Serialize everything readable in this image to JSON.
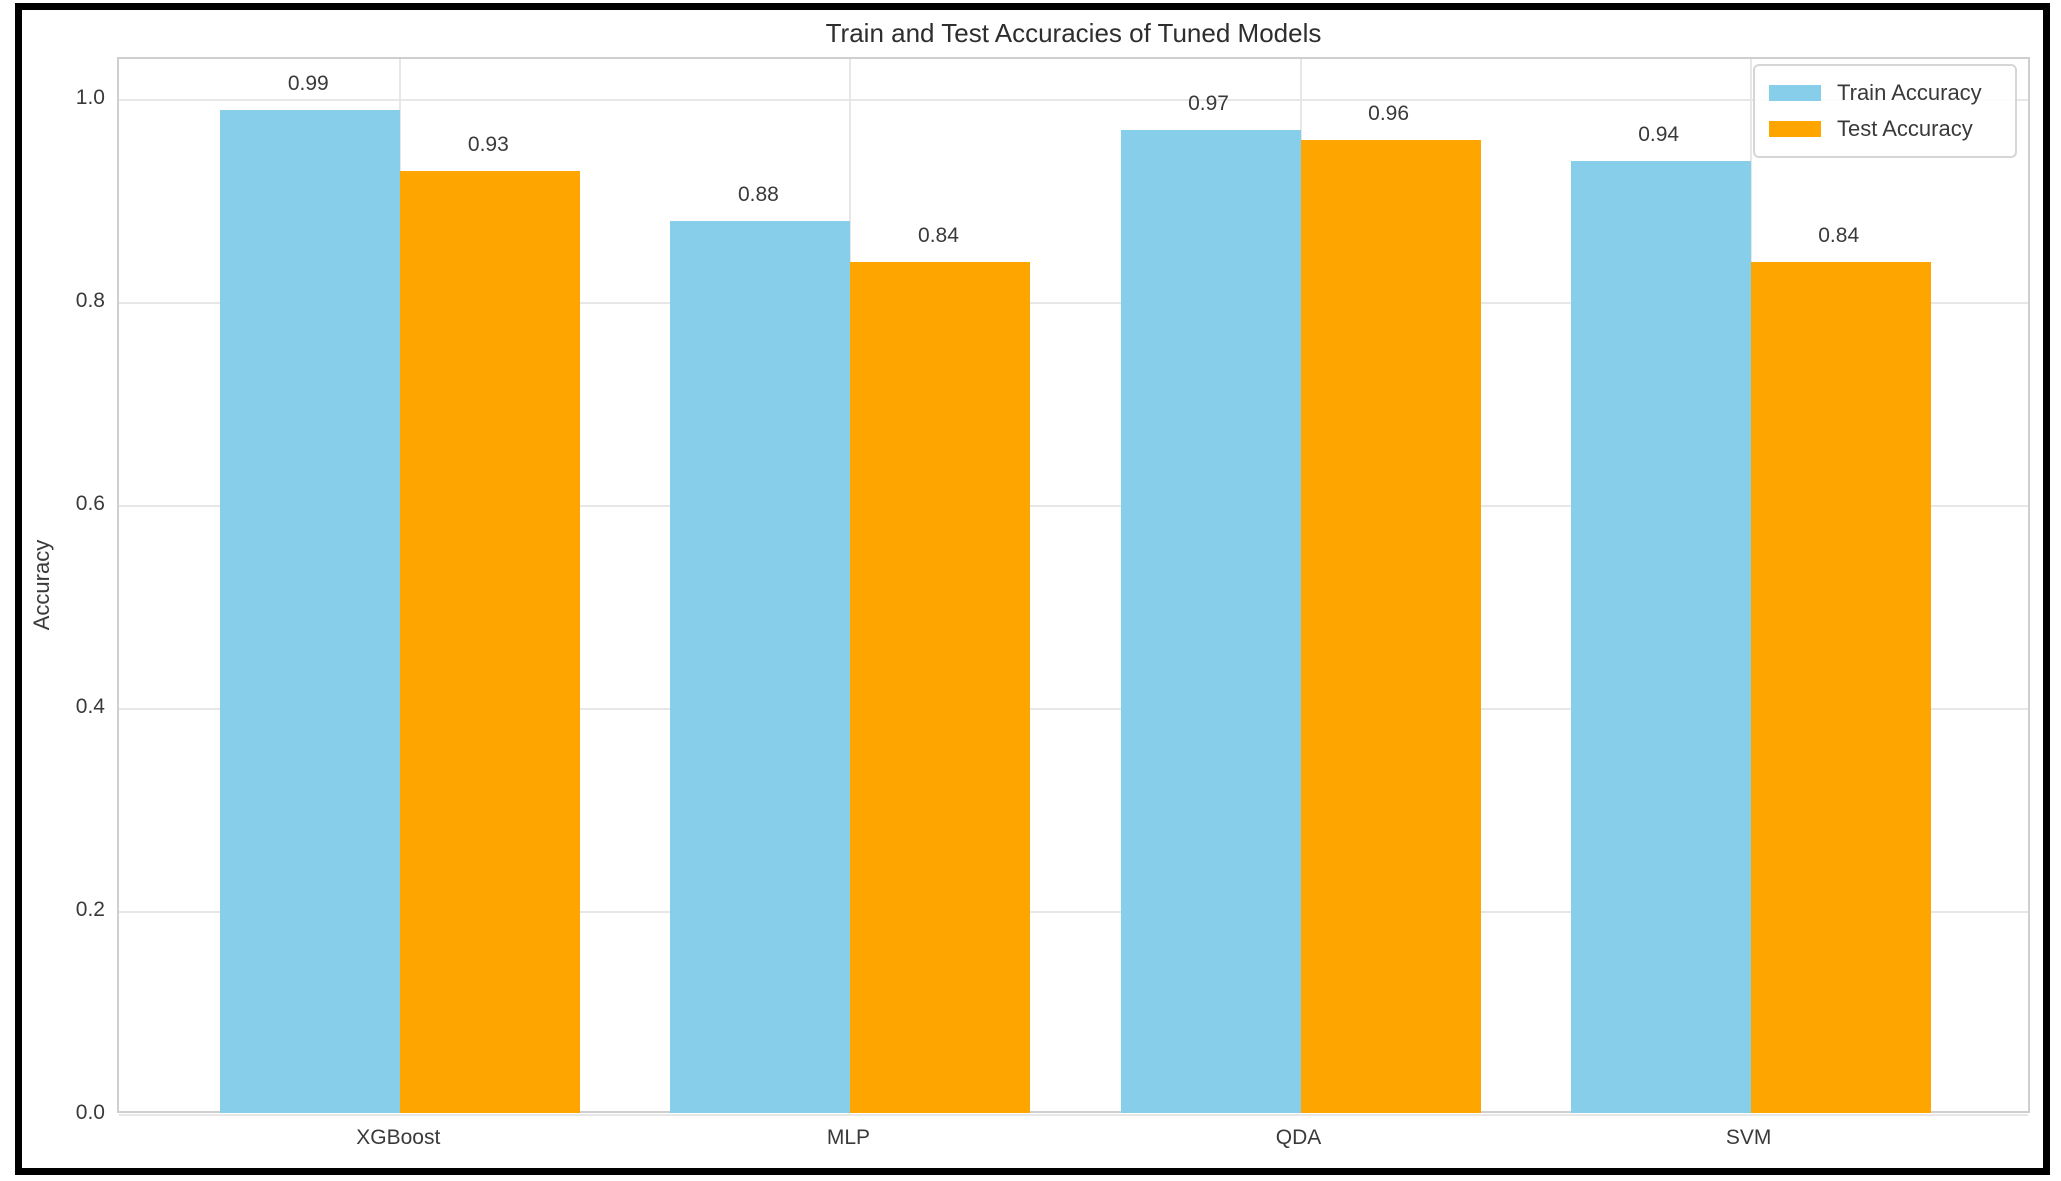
{
  "chart_data": {
    "type": "bar",
    "title": "Train and Test Accuracies of Tuned Models",
    "xlabel": "",
    "ylabel": "Accuracy",
    "categories": [
      "XGBoost",
      "MLP",
      "QDA",
      "SVM"
    ],
    "series": [
      {
        "name": "Train Accuracy",
        "color": "#87CEEB",
        "values": [
          0.99,
          0.88,
          0.97,
          0.94
        ],
        "labels": [
          "0.99",
          "0.88",
          "0.97",
          "0.94"
        ]
      },
      {
        "name": "Test Accuracy",
        "color": "#FFA500",
        "values": [
          0.93,
          0.84,
          0.96,
          0.84
        ],
        "labels": [
          "0.93",
          "0.84",
          "0.96",
          "0.84"
        ]
      }
    ],
    "y_ticks": [
      0.0,
      0.2,
      0.4,
      0.6,
      0.8,
      1.0
    ],
    "y_tick_labels": [
      "0.0",
      "0.2",
      "0.4",
      "0.6",
      "0.8",
      "1.0"
    ],
    "ylim": [
      0,
      1.04
    ],
    "xlim": [
      -0.625,
      3.625
    ],
    "bar_width": 0.4,
    "grid": true,
    "legend_position": "upper right",
    "colors": {
      "grid": "#e7e7e7",
      "plot_border": "#cfcfcf",
      "text": "#3a3a3a",
      "title": "#2e2e2e",
      "frame": "#000000",
      "background": "#ffffff",
      "legend_border": "#d6d6d6"
    }
  }
}
